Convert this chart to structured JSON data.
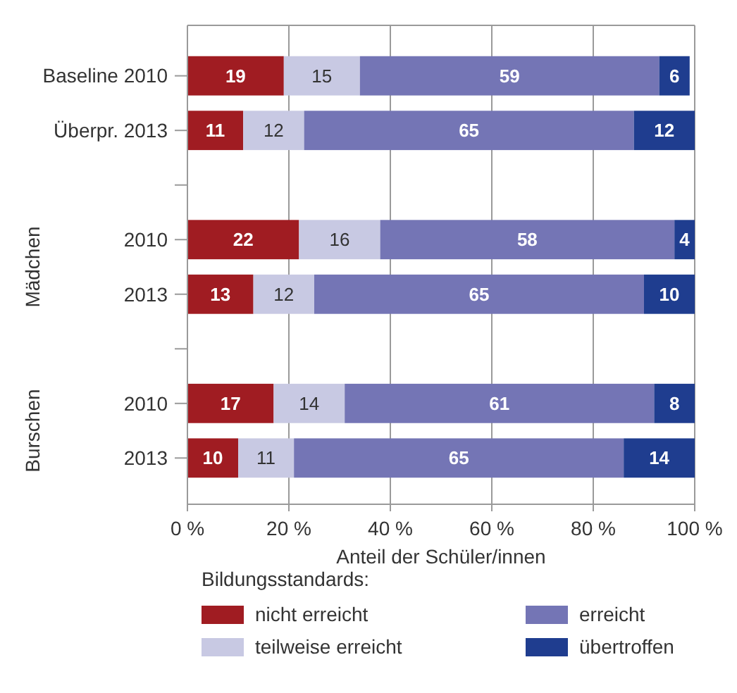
{
  "chart_data": {
    "type": "bar",
    "orientation": "horizontal",
    "stacked": true,
    "data_labels": true,
    "grid": "x",
    "legend": "bottom",
    "legend_title": "Bildungsstandards:",
    "xlabel": "Anteil der Schüler/innen",
    "categories": [
      "Baseline 2010",
      "Überpr. 2013",
      null,
      "2010",
      "2013",
      null,
      "2010",
      "2013"
    ],
    "xlim": [
      0,
      100
    ],
    "xticks": [
      {
        "value": 0,
        "label": "0 %"
      },
      {
        "value": 20,
        "label": "20 %"
      },
      {
        "value": 40,
        "label": "40 %"
      },
      {
        "value": 60,
        "label": "60 %"
      },
      {
        "value": 80,
        "label": "80 %"
      },
      {
        "value": 100,
        "label": "100 %"
      }
    ],
    "annotations": [
      "Mädchen",
      "Burschen"
    ],
    "series": [
      {
        "name": "nicht erreicht",
        "color": "#a01c22",
        "values": [
          19,
          11,
          null,
          22,
          13,
          null,
          17,
          10
        ]
      },
      {
        "name": "teilweise erreicht",
        "color": "#c8c9e3",
        "values": [
          15,
          12,
          null,
          16,
          12,
          null,
          14,
          11
        ]
      },
      {
        "name": "erreicht",
        "color": "#7475b5",
        "values": [
          59,
          65,
          null,
          58,
          65,
          null,
          61,
          65
        ]
      },
      {
        "name": "übertroffen",
        "color": "#1f3d8f",
        "values": [
          6,
          12,
          null,
          4,
          10,
          null,
          8,
          14
        ]
      }
    ]
  }
}
